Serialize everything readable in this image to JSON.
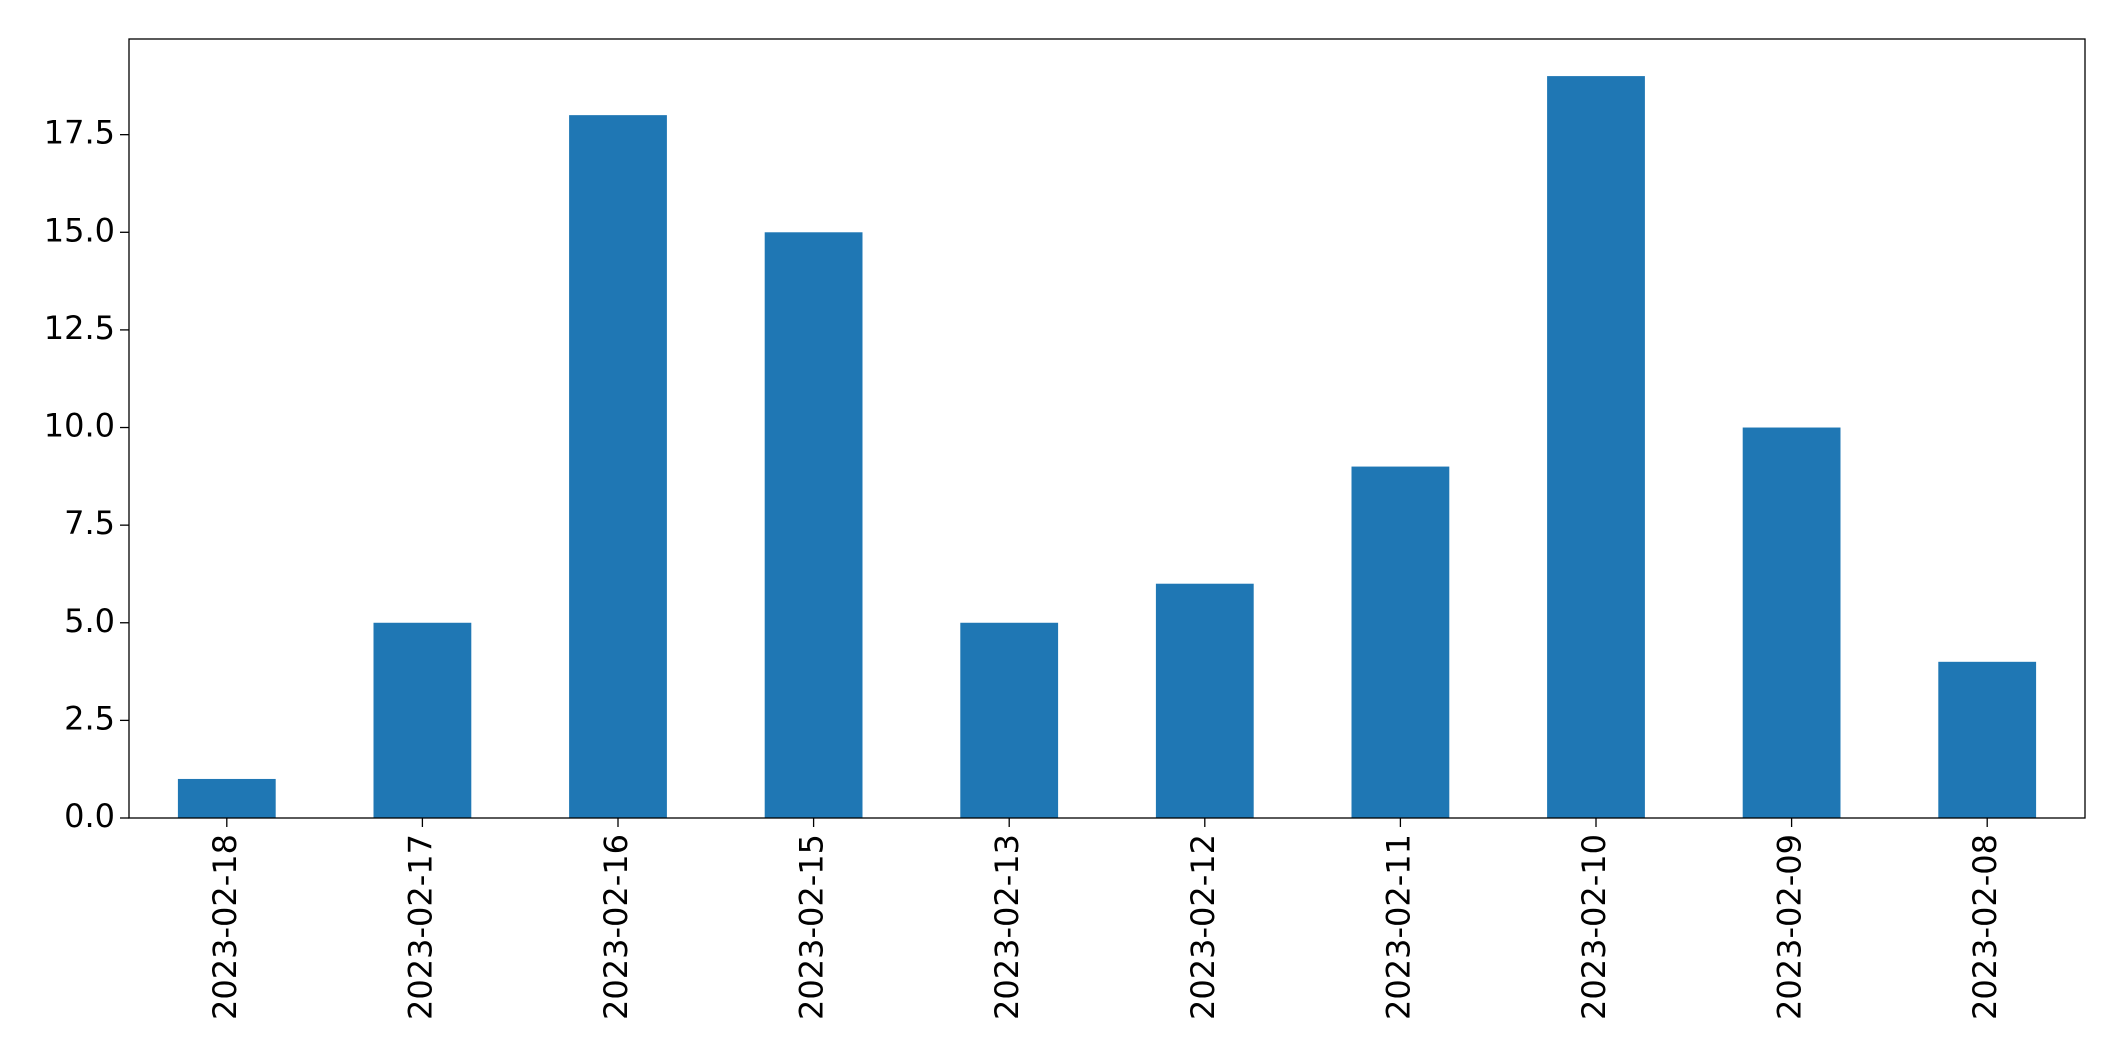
{
  "chart_data": {
    "type": "bar",
    "categories": [
      "2023-02-18",
      "2023-02-17",
      "2023-02-16",
      "2023-02-15",
      "2023-02-13",
      "2023-02-12",
      "2023-02-11",
      "2023-02-10",
      "2023-02-09",
      "2023-02-08"
    ],
    "values": [
      1,
      5,
      18,
      15,
      5,
      6,
      9,
      19,
      10,
      4
    ],
    "color": "#1f77b4",
    "ylim": [
      0,
      19.95
    ],
    "yticks": [
      {
        "value": 0,
        "label": "0.0"
      },
      2.5,
      {
        "value": 5,
        "label": "5.0"
      },
      7.5,
      {
        "value": 10,
        "label": "10.0"
      },
      12.5,
      {
        "value": 15,
        "label": "15.0"
      },
      17.5
    ],
    "grid": false
  }
}
